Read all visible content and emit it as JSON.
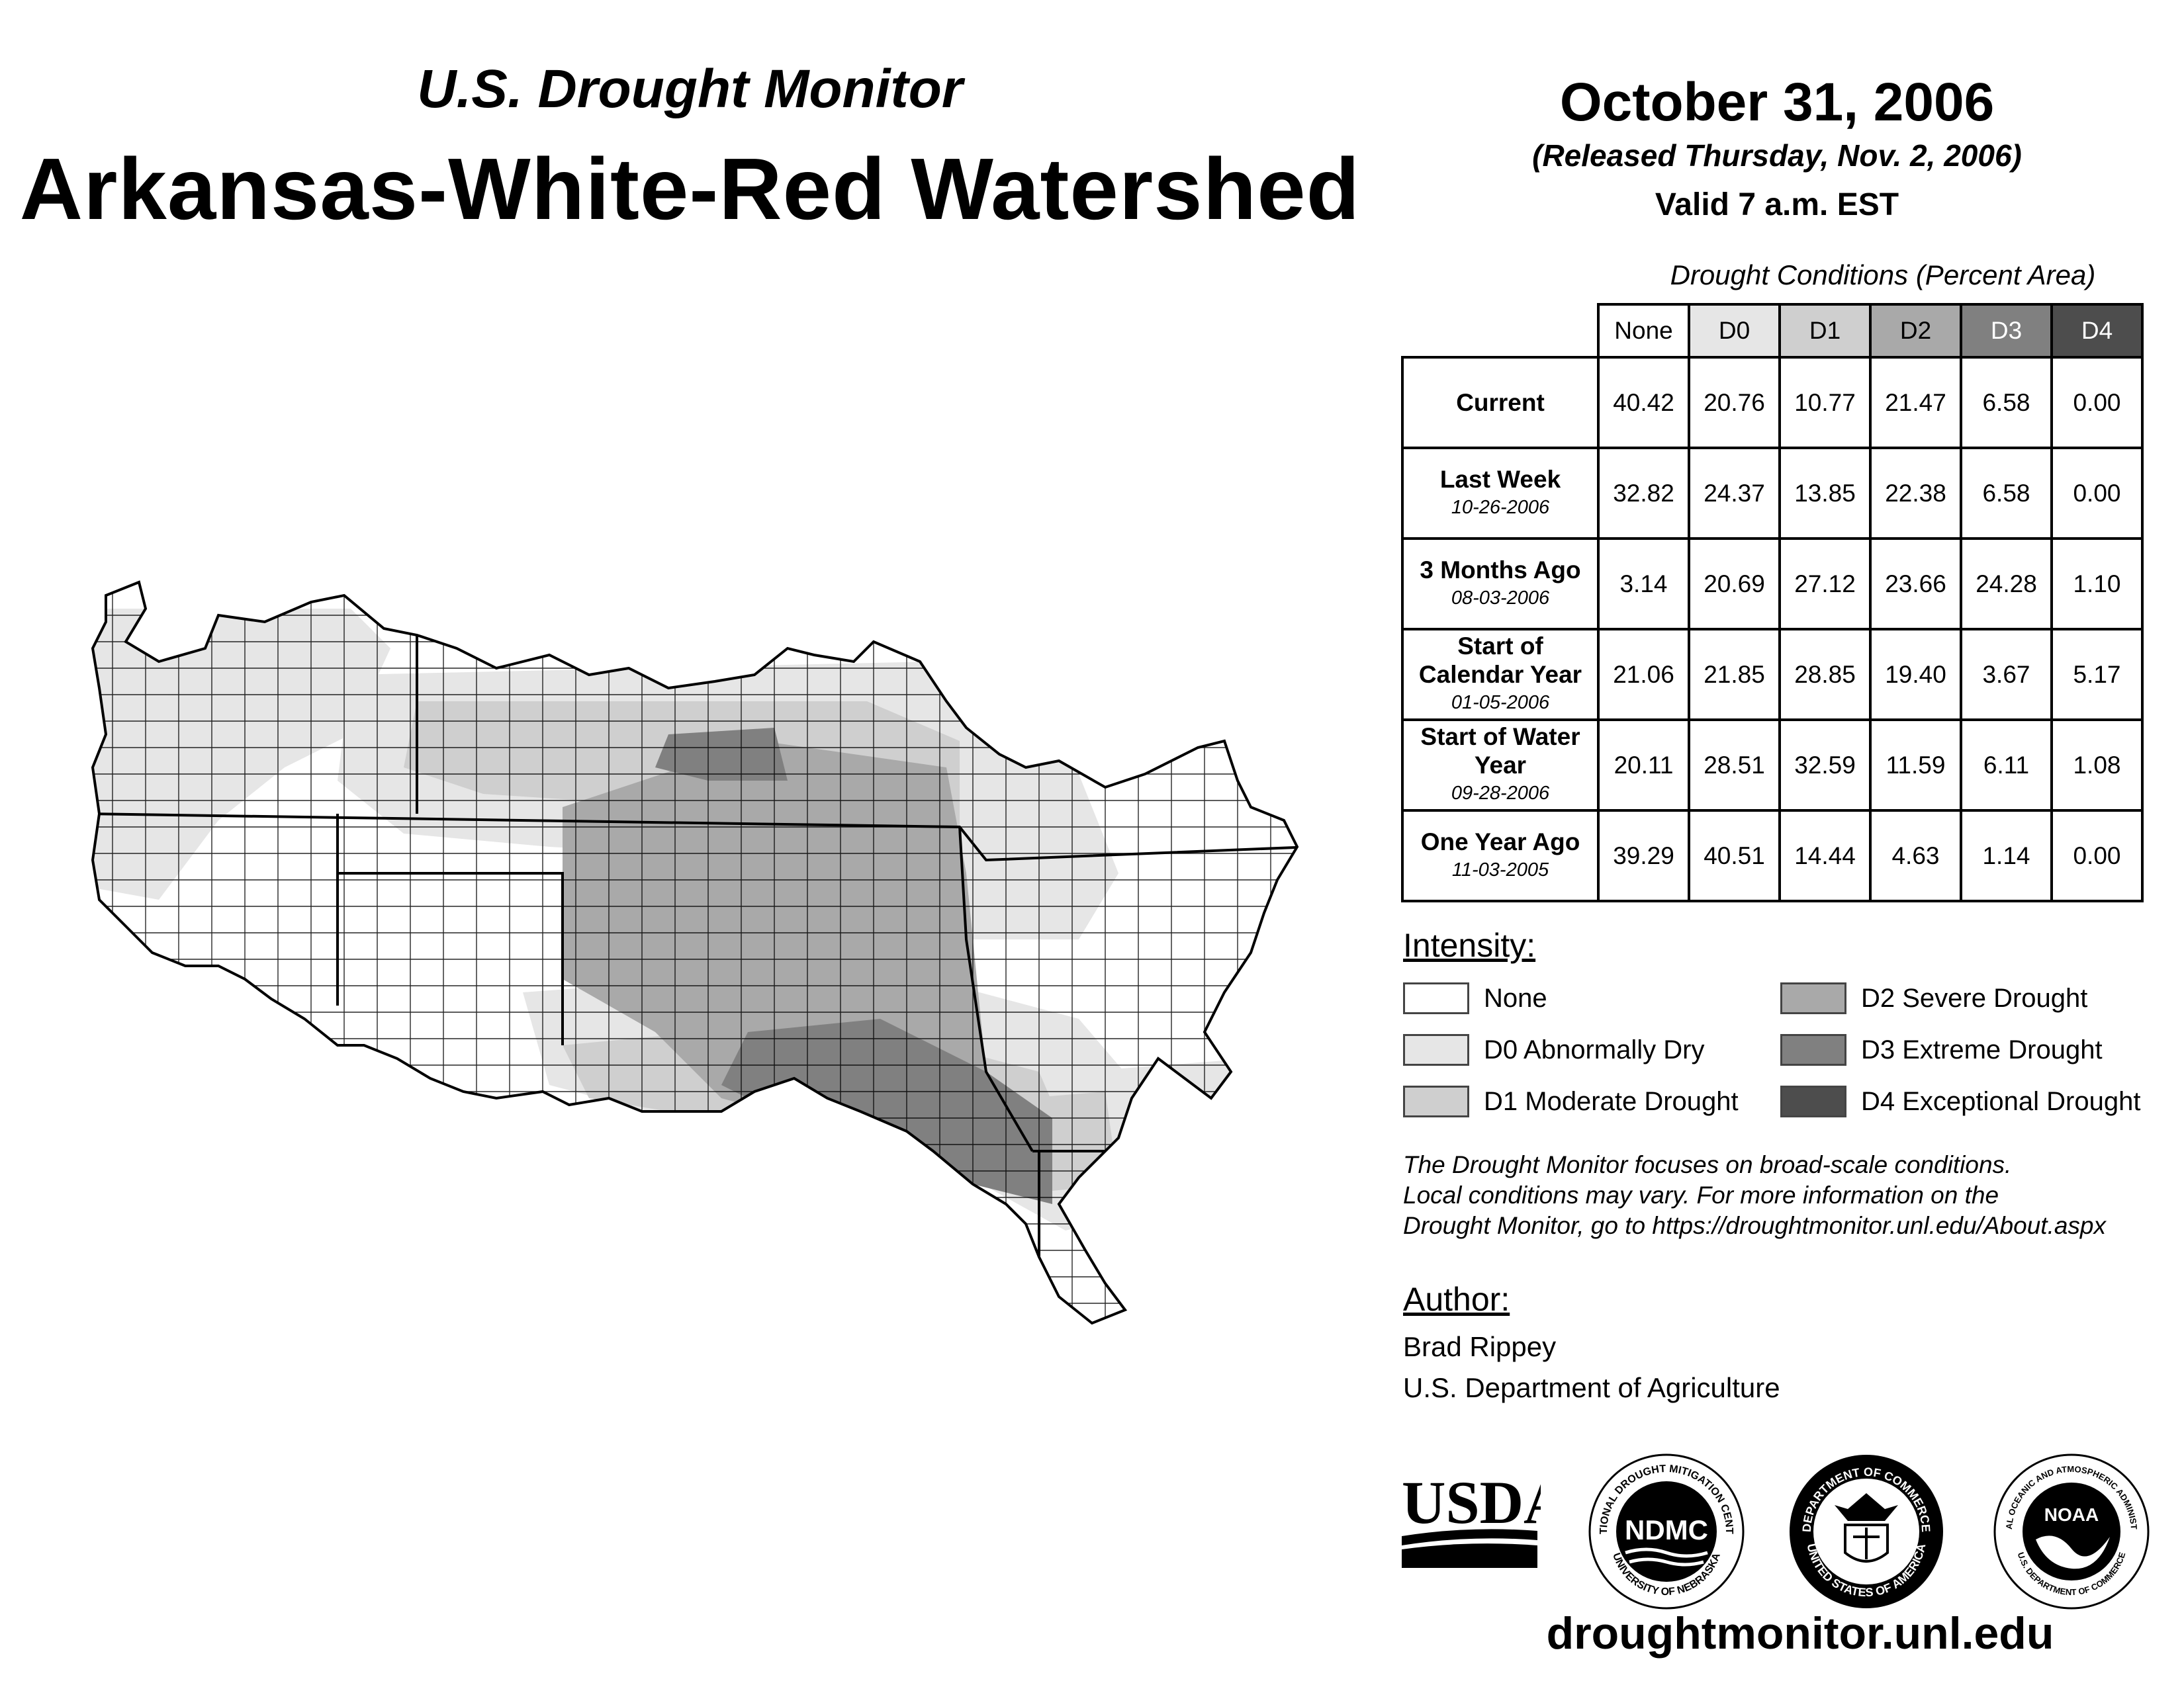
{
  "header": {
    "subtitle": "U.S. Drought Monitor",
    "title": "Arkansas-White-Red Watershed",
    "date": "October 31, 2006",
    "released": "(Released Thursday, Nov. 2, 2006)",
    "valid": "Valid 7 a.m. EST"
  },
  "table": {
    "caption": "Drought Conditions (Percent Area)",
    "columns": [
      "None",
      "D0",
      "D1",
      "D2",
      "D3",
      "D4"
    ],
    "column_colors": [
      "#ffffff",
      "#e6e6e6",
      "#cfcfcf",
      "#a9a9a9",
      "#808080",
      "#4d4d4d"
    ],
    "rows": [
      {
        "label": "Current",
        "date": "",
        "values": [
          "40.42",
          "20.76",
          "10.77",
          "21.47",
          "6.58",
          "0.00"
        ]
      },
      {
        "label": "Last Week",
        "date": "10-26-2006",
        "values": [
          "32.82",
          "24.37",
          "13.85",
          "22.38",
          "6.58",
          "0.00"
        ]
      },
      {
        "label": "3 Months Ago",
        "date": "08-03-2006",
        "values": [
          "3.14",
          "20.69",
          "27.12",
          "23.66",
          "24.28",
          "1.10"
        ]
      },
      {
        "label": "Start of Calendar Year",
        "date": "01-05-2006",
        "values": [
          "21.06",
          "21.85",
          "28.85",
          "19.40",
          "3.67",
          "5.17"
        ]
      },
      {
        "label": "Start of Water Year",
        "date": "09-28-2006",
        "values": [
          "20.11",
          "28.51",
          "32.59",
          "11.59",
          "6.11",
          "1.08"
        ]
      },
      {
        "label": "One Year Ago",
        "date": "11-03-2005",
        "values": [
          "39.29",
          "40.51",
          "14.44",
          "4.63",
          "1.14",
          "0.00"
        ]
      }
    ]
  },
  "legend": {
    "heading": "Intensity:",
    "items": [
      {
        "label": "None",
        "color": "#ffffff"
      },
      {
        "label": "D0 Abnormally Dry",
        "color": "#e6e6e6"
      },
      {
        "label": "D1 Moderate Drought",
        "color": "#cfcfcf"
      },
      {
        "label": "D2 Severe Drought",
        "color": "#a9a9a9"
      },
      {
        "label": "D3 Extreme Drought",
        "color": "#808080"
      },
      {
        "label": "D4 Exceptional Drought",
        "color": "#4d4d4d"
      }
    ]
  },
  "note": {
    "line1": "The Drought Monitor focuses on broad-scale conditions.",
    "line2": "Local conditions may vary. For more information on the",
    "line3": "Drought Monitor, go to https://droughtmonitor.unl.edu/About.aspx"
  },
  "author": {
    "heading": "Author:",
    "name": "Brad Rippey",
    "org": "U.S. Department of Agriculture"
  },
  "logos": {
    "usda": "USDA",
    "ndmc": "NDMC",
    "ndmc_top": "NATIONAL DROUGHT MITIGATION CENTER",
    "ndmc_bottom": "UNIVERSITY OF NEBRASKA",
    "doc_top": "DEPARTMENT OF COMMERCE",
    "doc_bottom": "UNITED STATES OF AMERICA",
    "noaa": "NOAA",
    "noaa_top": "NATIONAL OCEANIC AND ATMOSPHERIC ADMINISTRATION",
    "noaa_bottom": "U.S. DEPARTMENT OF COMMERCE"
  },
  "footer": {
    "url": "droughtmonitor.unl.edu"
  }
}
